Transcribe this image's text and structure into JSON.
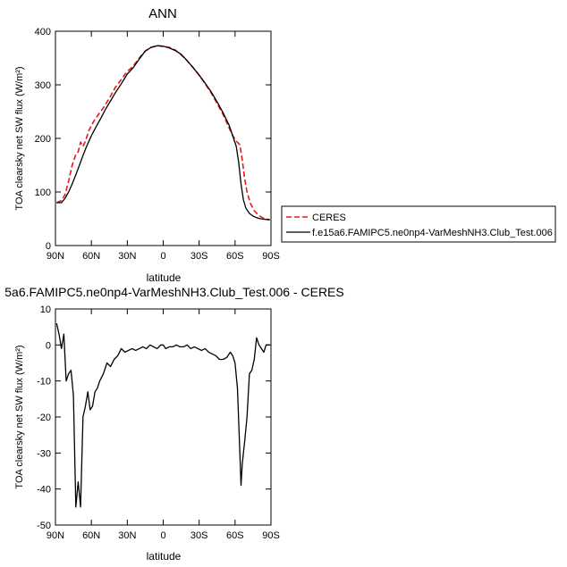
{
  "chart_data": [
    {
      "type": "line",
      "title": "ANN",
      "ylabel": "TOA clearsky net SW flux (W/m²)",
      "xlabel": "latitude",
      "xlim": [
        90,
        -90
      ],
      "ylim": [
        0,
        400
      ],
      "xticks": [
        90,
        60,
        30,
        0,
        -30,
        -60,
        -90
      ],
      "xtick_labels": [
        "90N",
        "60N",
        "30N",
        "0",
        "30S",
        "60S",
        "90S"
      ],
      "yticks": [
        0,
        100,
        200,
        300,
        400
      ],
      "legend": "right",
      "grid": false,
      "series": [
        {
          "name": "CERES",
          "color": "#e8161b",
          "dash": "dashed",
          "x": [
            89,
            85,
            82,
            79,
            76,
            73,
            71,
            69,
            67,
            65,
            62,
            58,
            54,
            50,
            45,
            40,
            35,
            30,
            25,
            20,
            15,
            10,
            5,
            0,
            -5,
            -10,
            -15,
            -20,
            -25,
            -30,
            -35,
            -40,
            -45,
            -50,
            -55,
            -58,
            -61,
            -64,
            -66,
            -68,
            -70,
            -73,
            -76,
            -79,
            -82,
            -85,
            -89
          ],
          "y": [
            80,
            84,
            95,
            120,
            150,
            170,
            175,
            193,
            185,
            195,
            215,
            232,
            245,
            257,
            275,
            295,
            310,
            325,
            335,
            350,
            363,
            370,
            373,
            372,
            370,
            365,
            356,
            345,
            332,
            318,
            302,
            285,
            265,
            245,
            220,
            205,
            195,
            188,
            160,
            125,
            100,
            78,
            65,
            58,
            53,
            50,
            48
          ]
        },
        {
          "name": "f.e15a6.FAMIPC5.ne0np4-VarMeshNH3.Club_Test.006",
          "color": "#000000",
          "dash": "solid",
          "x": [
            89,
            85,
            82,
            79,
            76,
            73,
            70,
            67,
            64,
            60,
            56,
            52,
            48,
            44,
            40,
            35,
            30,
            25,
            20,
            15,
            10,
            5,
            0,
            -5,
            -10,
            -15,
            -20,
            -25,
            -30,
            -35,
            -40,
            -45,
            -50,
            -55,
            -58,
            -61,
            -63,
            -65,
            -67,
            -69,
            -72,
            -75,
            -78,
            -81,
            -85,
            -89
          ],
          "y": [
            80,
            80,
            88,
            100,
            115,
            132,
            150,
            168,
            185,
            205,
            222,
            238,
            255,
            270,
            285,
            302,
            320,
            332,
            348,
            363,
            370,
            373,
            372,
            369,
            364,
            357,
            345,
            332,
            318,
            303,
            287,
            268,
            248,
            225,
            205,
            185,
            155,
            115,
            85,
            70,
            60,
            55,
            52,
            50,
            49,
            48
          ]
        }
      ]
    },
    {
      "type": "line",
      "title": "5a6.FAMIPC5.ne0np4-VarMeshNH3.Club_Test.006 - CERES",
      "ylabel": "TOA clearsky net SW flux (W/m²)",
      "xlabel": "latitude",
      "xlim": [
        90,
        -90
      ],
      "ylim": [
        -50,
        10
      ],
      "xticks": [
        90,
        60,
        30,
        0,
        -30,
        -60,
        -90
      ],
      "xtick_labels": [
        "90N",
        "60N",
        "30N",
        "0",
        "30S",
        "60S",
        "90S"
      ],
      "yticks": [
        10,
        0,
        -10,
        -20,
        -30,
        -40,
        -50
      ],
      "grid": false,
      "series": [
        {
          "color": "#000000",
          "x": [
            89,
            87,
            85,
            83,
            81,
            79,
            77,
            75,
            73,
            71,
            69,
            67,
            65,
            63,
            61,
            59,
            57,
            55,
            53,
            50,
            47,
            44,
            41,
            38,
            35,
            32,
            29,
            26,
            23,
            20,
            17,
            14,
            11,
            8,
            5,
            2,
            0,
            -2,
            -5,
            -8,
            -11,
            -14,
            -17,
            -20,
            -23,
            -26,
            -29,
            -32,
            -35,
            -38,
            -41,
            -44,
            -47,
            -50,
            -53,
            -56,
            -58,
            -60,
            -62,
            -64,
            -65,
            -66,
            -68,
            -70,
            -72,
            -74,
            -76,
            -78,
            -80,
            -82,
            -84,
            -86,
            -88,
            -89
          ],
          "y": [
            6,
            3,
            -1,
            3,
            -10,
            -8,
            -7,
            -14,
            -45,
            -38,
            -45,
            -20,
            -17,
            -13,
            -18,
            -17,
            -13,
            -12,
            -10,
            -8,
            -5,
            -6,
            -4,
            -3,
            -1,
            -2,
            -1.5,
            -1,
            -1.5,
            -1,
            -0.5,
            -1,
            0,
            -0.5,
            -1,
            0,
            0,
            -1,
            -0.5,
            -0.5,
            0,
            -0.5,
            -0.5,
            0,
            -1,
            -0.5,
            -1,
            -1.5,
            -1,
            -2,
            -2.5,
            -3,
            -4,
            -4,
            -3.5,
            -2,
            -3,
            -5,
            -12,
            -30,
            -39,
            -33,
            -27,
            -20,
            -8,
            -7,
            -4,
            2,
            0,
            -1,
            -2,
            0,
            0,
            0
          ]
        }
      ]
    }
  ]
}
